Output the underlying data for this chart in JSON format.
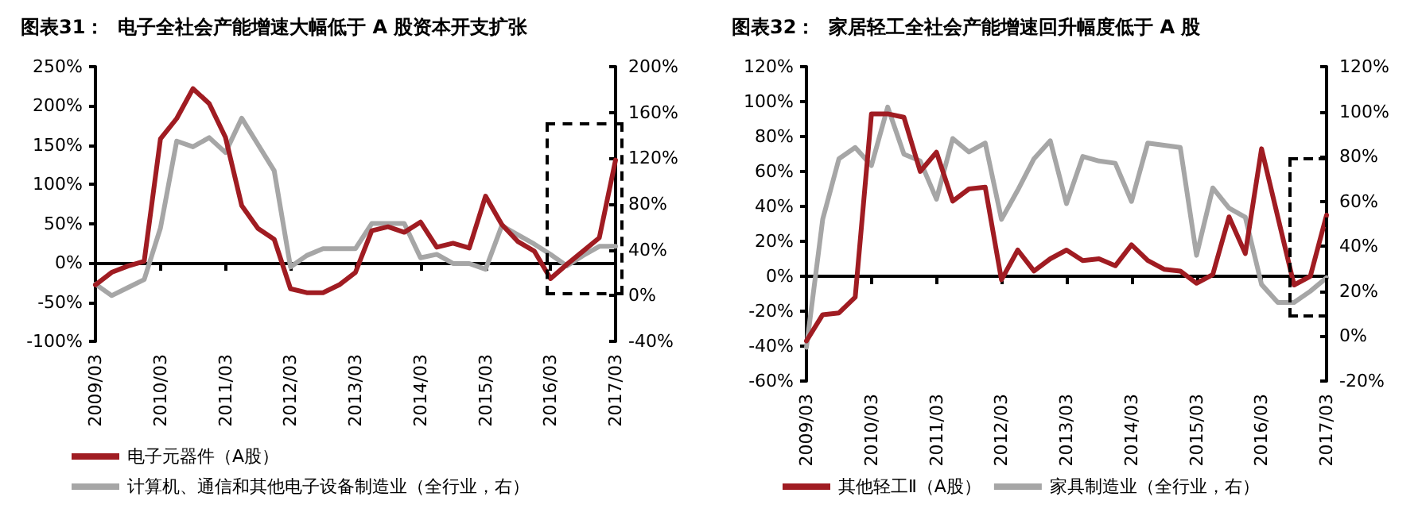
{
  "chart_data": [
    {
      "type": "line",
      "title": "图表31：  电子全社会产能增速大幅低于 A 股资本开支扩张",
      "categories": [
        "2009/03",
        null,
        null,
        null,
        "2010/03",
        null,
        null,
        null,
        "2011/03",
        null,
        null,
        null,
        "2012/03",
        null,
        null,
        null,
        "2013/03",
        null,
        null,
        null,
        "2014/03",
        null,
        null,
        null,
        "2015/03",
        null,
        null,
        null,
        "2016/03",
        null,
        null,
        null,
        "2017/03"
      ],
      "series": [
        {
          "name": "电子元器件（A股）",
          "color": "#a01c22",
          "values": [
            -28,
            -12,
            -4,
            2,
            158,
            184,
            222,
            203,
            160,
            73,
            44,
            30,
            -33,
            -38,
            -38,
            -28,
            -12,
            41,
            46,
            39,
            52,
            20,
            25,
            19,
            85,
            49,
            27,
            15,
            -20,
            -2,
            15,
            32,
            131
          ]
        },
        {
          "name": "计算机、通信和其他电子设备制造业（全行业，右）",
          "color": "#a6a6a6",
          "axis": "y2",
          "values": [
            10,
            0,
            7,
            14,
            59,
            135,
            130,
            138,
            125,
            155,
            132,
            109,
            25,
            35,
            41,
            41,
            41,
            63,
            63,
            63,
            33,
            36,
            28,
            28,
            23,
            61,
            53,
            45,
            36,
            26,
            35,
            43,
            43
          ]
        }
      ],
      "ylim": [
        -100,
        250
      ],
      "yticks": [
        {
          "value": -100,
          "label": "-100%"
        },
        {
          "value": -50,
          "label": "-50%"
        },
        {
          "value": 0,
          "label": "0%"
        },
        {
          "value": 50,
          "label": "50%"
        },
        {
          "value": 100,
          "label": "100%"
        },
        {
          "value": 150,
          "label": "150%"
        },
        {
          "value": 200,
          "label": "200%"
        },
        {
          "value": 250,
          "label": "250%"
        }
      ],
      "y2lim": [
        -40,
        200
      ],
      "y2ticks": [
        {
          "value": -40,
          "label": "-40%"
        },
        {
          "value": 0,
          "label": "0%"
        },
        {
          "value": 40,
          "label": "40%"
        },
        {
          "value": 80,
          "label": "80%"
        },
        {
          "value": 120,
          "label": "120%"
        },
        {
          "value": 160,
          "label": "160%"
        },
        {
          "value": 200,
          "label": "200%"
        }
      ],
      "legend": "bottom"
    },
    {
      "type": "line",
      "title": "图表32：  家居轻工全社会产能增速回升幅度低于 A 股",
      "categories": [
        "2009/03",
        null,
        null,
        null,
        "2010/03",
        null,
        null,
        null,
        "2011/03",
        null,
        null,
        null,
        "2012/03",
        null,
        null,
        null,
        "2013/03",
        null,
        null,
        null,
        "2014/03",
        null,
        null,
        null,
        "2015/03",
        null,
        null,
        null,
        "2016/03",
        null,
        null,
        null,
        "2017/03"
      ],
      "series": [
        {
          "name": "其他轻工Ⅱ（A股）",
          "color": "#a01c22",
          "values": [
            -37,
            -22,
            -21,
            -12,
            93,
            93,
            91,
            60,
            71,
            43,
            50,
            51,
            -2,
            15,
            3,
            10,
            15,
            9,
            10,
            6,
            18,
            9,
            4,
            3,
            -4,
            1,
            34,
            13,
            73,
            34,
            -5,
            0,
            35
          ]
        },
        {
          "name": "家具制造业（全行业，右）",
          "color": "#a6a6a6",
          "axis": "y2",
          "values": [
            -5,
            52,
            79,
            84,
            76,
            102,
            81,
            78,
            61,
            88,
            82,
            86,
            52,
            65,
            79,
            87,
            59,
            80,
            78,
            77,
            60,
            86,
            85,
            84,
            36,
            66,
            57,
            53,
            23,
            15,
            15,
            20,
            26
          ]
        }
      ],
      "ylim": [
        -60,
        120
      ],
      "yticks": [
        {
          "value": -60,
          "label": "-60%"
        },
        {
          "value": -40,
          "label": "-40%"
        },
        {
          "value": -20,
          "label": "-20%"
        },
        {
          "value": 0,
          "label": "0%"
        },
        {
          "value": 20,
          "label": "20%"
        },
        {
          "value": 40,
          "label": "40%"
        },
        {
          "value": 60,
          "label": "60%"
        },
        {
          "value": 80,
          "label": "80%"
        },
        {
          "value": 100,
          "label": "100%"
        },
        {
          "value": 120,
          "label": "120%"
        }
      ],
      "y2lim": [
        -20,
        120
      ],
      "y2ticks": [
        {
          "value": -20,
          "label": "-20%"
        },
        {
          "value": 0,
          "label": "0%"
        },
        {
          "value": 20,
          "label": "20%"
        },
        {
          "value": 40,
          "label": "40%"
        },
        {
          "value": 60,
          "label": "60%"
        },
        {
          "value": 80,
          "label": "80%"
        },
        {
          "value": 100,
          "label": "100%"
        },
        {
          "value": 120,
          "label": "120%"
        }
      ],
      "legend": "bottom"
    }
  ]
}
